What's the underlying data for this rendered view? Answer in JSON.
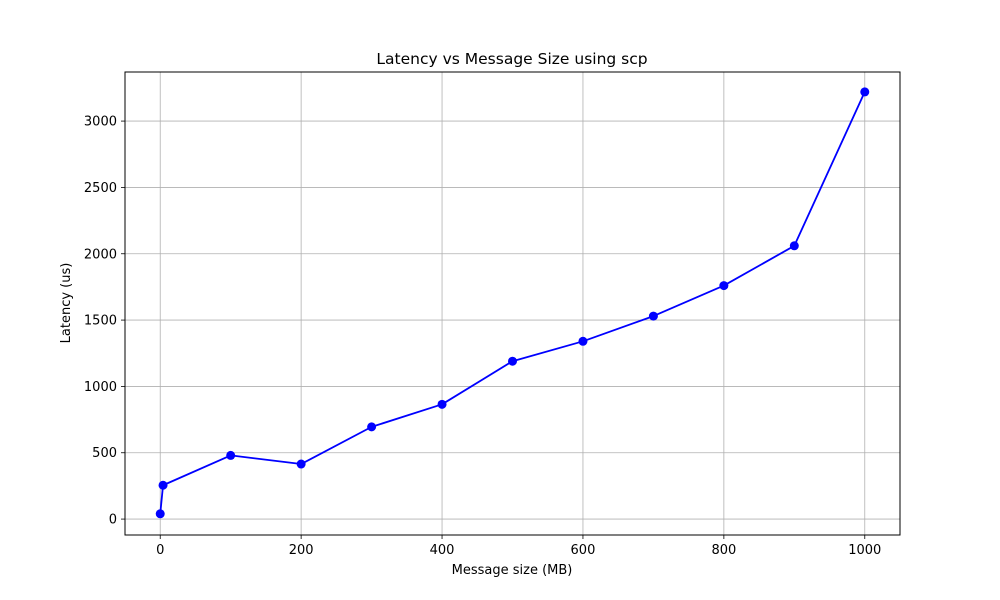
{
  "chart_data": {
    "type": "line",
    "title": "Latency vs Message Size using scp",
    "xlabel": "Message size (MB)",
    "ylabel": "Latency (us)",
    "xlim": [
      -50,
      1050
    ],
    "ylim": [
      -120,
      3370
    ],
    "xticks": [
      0,
      200,
      400,
      600,
      800,
      1000
    ],
    "yticks": [
      0,
      500,
      1000,
      1500,
      2000,
      2500,
      3000
    ],
    "grid": true,
    "series": [
      {
        "color": "#0000ff",
        "marker": "circle",
        "x": [
          0,
          4,
          100,
          200,
          300,
          400,
          500,
          600,
          700,
          800,
          900,
          1000
        ],
        "y": [
          40,
          255,
          480,
          415,
          695,
          865,
          1190,
          1340,
          1530,
          1760,
          2060,
          3220
        ]
      }
    ]
  }
}
